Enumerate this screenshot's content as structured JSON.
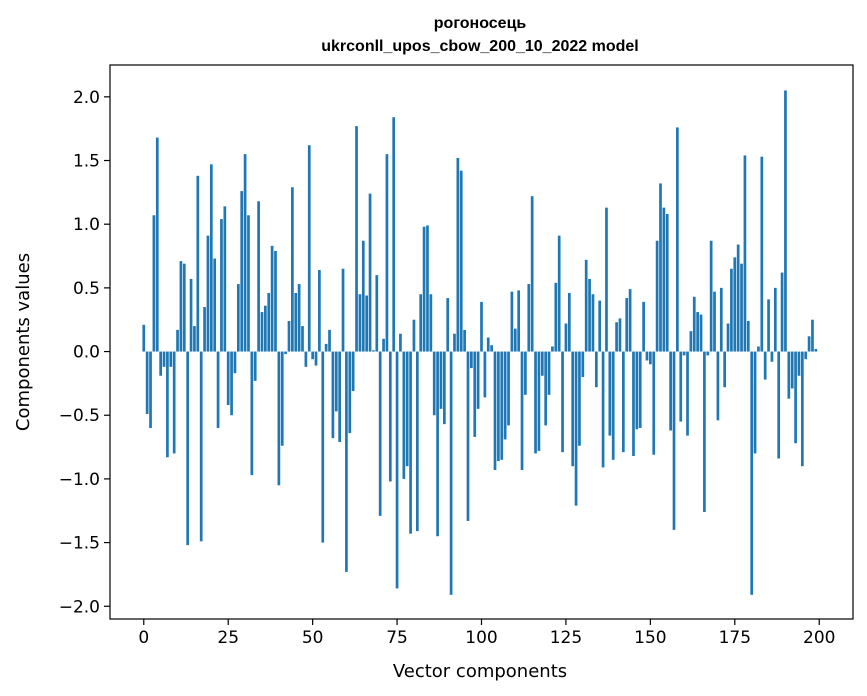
{
  "chart_data": {
    "type": "bar",
    "title_line1": "рогоносець",
    "title_line2": "ukrconll_upos_cbow_200_10_2022 model",
    "xlabel": "Vector components",
    "ylabel": "Components values",
    "xlim": [
      -10,
      210
    ],
    "ylim": [
      -2.1,
      2.25
    ],
    "xticks": [
      0,
      25,
      50,
      75,
      100,
      125,
      150,
      175,
      200
    ],
    "xtick_labels": [
      "0",
      "25",
      "50",
      "75",
      "100",
      "125",
      "150",
      "175",
      "200"
    ],
    "yticks": [
      -2.0,
      -1.5,
      -1.0,
      -0.5,
      0.0,
      0.5,
      1.0,
      1.5,
      2.0
    ],
    "ytick_labels": [
      "−2.0",
      "−1.5",
      "−1.0",
      "−0.5",
      "0.0",
      "0.5",
      "1.0",
      "1.5",
      "2.0"
    ],
    "bar_color": "#1f77b4",
    "grid": false,
    "values": [
      0.21,
      -0.49,
      -0.6,
      1.07,
      1.68,
      -0.19,
      -0.12,
      -0.83,
      -0.12,
      -0.8,
      0.17,
      0.71,
      0.69,
      -1.52,
      0.57,
      0.2,
      1.38,
      -1.49,
      0.35,
      0.91,
      1.47,
      0.73,
      -0.6,
      1.04,
      1.14,
      -0.42,
      -0.5,
      -0.17,
      0.53,
      1.26,
      1.55,
      1.07,
      -0.97,
      -0.23,
      1.18,
      0.31,
      0.36,
      0.46,
      0.83,
      0.79,
      -1.05,
      -0.74,
      -0.02,
      0.24,
      1.29,
      0.46,
      0.53,
      0.2,
      -0.12,
      1.62,
      -0.06,
      -0.11,
      0.64,
      -1.5,
      0.06,
      0.17,
      -0.68,
      -0.47,
      -0.71,
      0.65,
      -1.73,
      -0.64,
      -0.31,
      1.77,
      0.45,
      0.87,
      0.44,
      1.24,
      0.01,
      0.6,
      -1.29,
      0.1,
      1.55,
      -1.02,
      1.84,
      -1.86,
      0.14,
      -1.0,
      -0.9,
      -1.43,
      0.25,
      -1.41,
      0.45,
      0.98,
      0.99,
      0.45,
      -0.5,
      -1.45,
      -0.45,
      -0.57,
      0.42,
      -1.91,
      0.14,
      1.52,
      1.42,
      0.17,
      -1.33,
      -0.13,
      -0.67,
      -0.45,
      0.39,
      -0.36,
      0.11,
      0.05,
      -0.93,
      -0.86,
      -0.85,
      -0.69,
      -0.58,
      0.47,
      0.18,
      0.48,
      -0.93,
      -0.34,
      0.53,
      1.22,
      -0.8,
      -0.78,
      -0.19,
      -0.58,
      -0.34,
      0.04,
      0.54,
      0.91,
      -0.79,
      0.22,
      0.46,
      -0.9,
      -1.21,
      -0.74,
      -0.2,
      0.72,
      0.57,
      0.45,
      -0.28,
      0.4,
      -0.91,
      1.13,
      -0.66,
      -0.85,
      0.23,
      0.26,
      -0.79,
      0.42,
      0.49,
      -0.82,
      -0.61,
      -0.6,
      0.39,
      -0.07,
      -0.1,
      -0.81,
      0.87,
      1.32,
      1.13,
      1.08,
      -0.62,
      -1.4,
      1.76,
      -0.55,
      -0.03,
      -0.66,
      0.16,
      0.43,
      0.31,
      0.29,
      -1.26,
      -0.03,
      0.87,
      0.47,
      -0.54,
      0.5,
      -0.28,
      0.22,
      0.65,
      0.74,
      0.84,
      0.69,
      1.54,
      0.24,
      -1.91,
      -0.8,
      0.04,
      1.53,
      -0.22,
      0.41,
      -0.08,
      0.5,
      -0.84,
      0.62,
      2.05,
      -0.37,
      -0.29,
      -0.72,
      -0.19,
      -0.9,
      -0.06,
      0.12,
      0.25,
      0.02
    ]
  }
}
